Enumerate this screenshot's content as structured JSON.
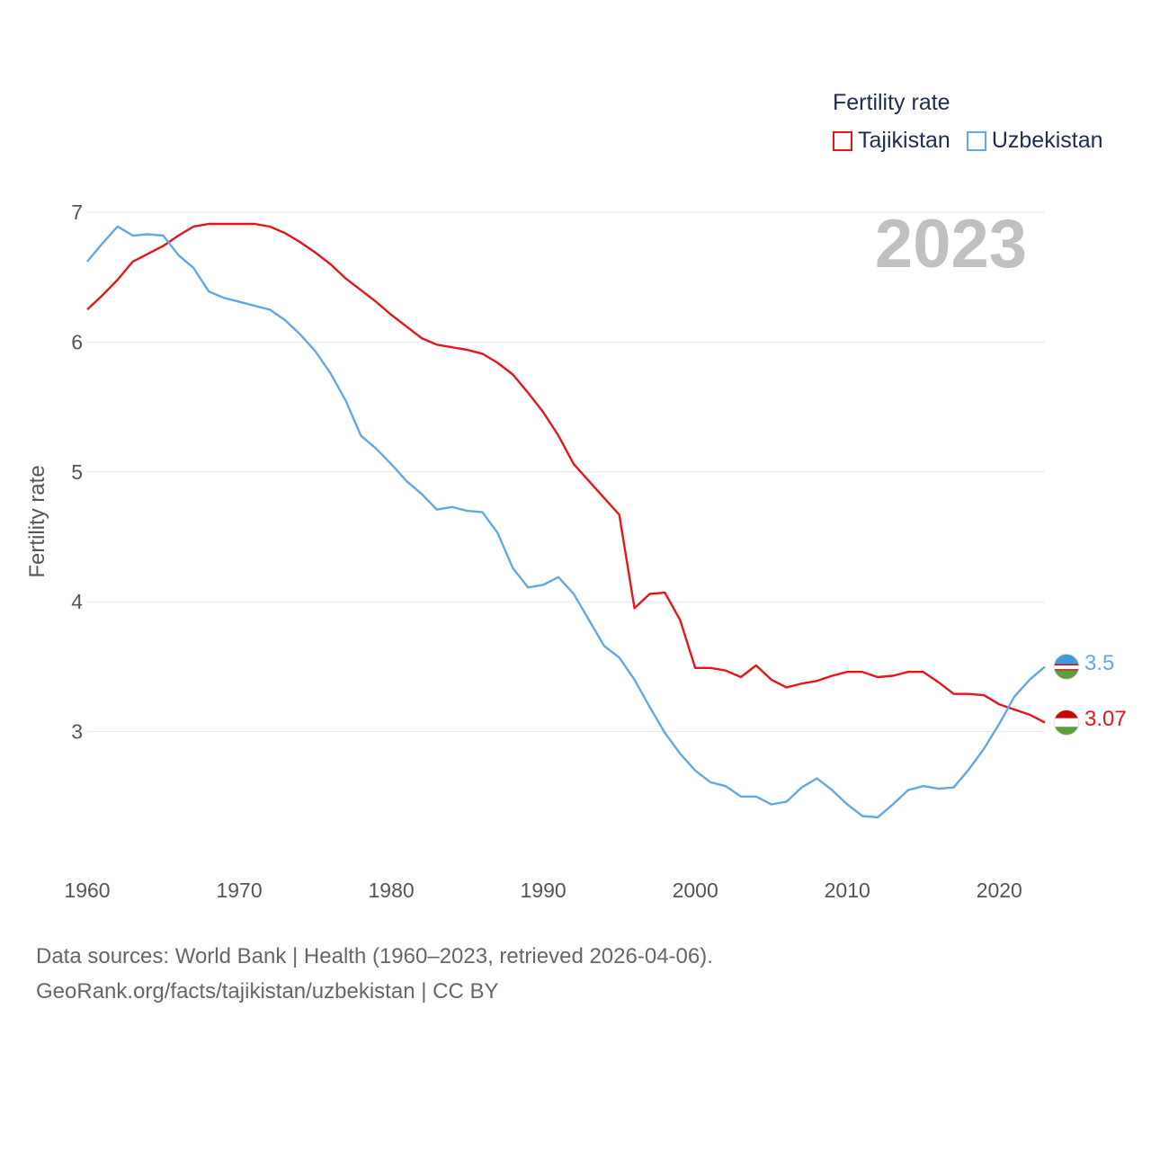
{
  "legend": {
    "title": "Fertility rate",
    "items": [
      {
        "label": "Tajikistan",
        "color": "#e8141b"
      },
      {
        "label": "Uzbekistan",
        "color": "#62a8e5"
      }
    ]
  },
  "year_label": "2023",
  "end_labels": {
    "tajikistan": "3.07",
    "uzbekistan": "3.5"
  },
  "footer": {
    "line1": "Data sources: World Bank | Health (1960–2023, retrieved 2026-04-06).",
    "line2": "GeoRank.org/facts/tajikistan/uzbekistan | CC BY"
  },
  "chart_data": {
    "type": "line",
    "title": "",
    "ylabel": "Fertility rate",
    "xlabel": "",
    "xlim": [
      1960,
      2023
    ],
    "ylim": [
      2,
      7
    ],
    "yticks": [
      3,
      4,
      5,
      6,
      7
    ],
    "xticks": [
      1960,
      1970,
      1980,
      1990,
      2000,
      2010,
      2020
    ],
    "grid": true,
    "legend_position": "top-right",
    "x": [
      1960,
      1961,
      1962,
      1963,
      1964,
      1965,
      1966,
      1967,
      1968,
      1969,
      1970,
      1971,
      1972,
      1973,
      1974,
      1975,
      1976,
      1977,
      1978,
      1979,
      1980,
      1981,
      1982,
      1983,
      1984,
      1985,
      1986,
      1987,
      1988,
      1989,
      1990,
      1991,
      1992,
      1993,
      1994,
      1995,
      1996,
      1997,
      1998,
      1999,
      2000,
      2001,
      2002,
      2003,
      2004,
      2005,
      2006,
      2007,
      2008,
      2009,
      2010,
      2011,
      2012,
      2013,
      2014,
      2015,
      2016,
      2017,
      2018,
      2019,
      2020,
      2021,
      2022,
      2023
    ],
    "series": [
      {
        "name": "Tajikistan",
        "color": "#e8141b",
        "values": [
          6.25,
          6.36,
          6.48,
          6.62,
          6.68,
          6.74,
          6.82,
          6.89,
          6.91,
          6.91,
          6.91,
          6.91,
          6.89,
          6.84,
          6.77,
          6.69,
          6.6,
          6.49,
          6.4,
          6.31,
          6.21,
          6.12,
          6.03,
          5.98,
          5.96,
          5.94,
          5.91,
          5.84,
          5.75,
          5.61,
          5.46,
          5.28,
          5.06,
          4.93,
          4.8,
          4.67,
          3.95,
          4.06,
          4.07,
          3.86,
          3.49,
          3.49,
          3.47,
          3.42,
          3.51,
          3.4,
          3.34,
          3.37,
          3.39,
          3.43,
          3.46,
          3.46,
          3.42,
          3.43,
          3.46,
          3.46,
          3.38,
          3.29,
          3.29,
          3.28,
          3.21,
          3.17,
          3.13,
          3.07
        ]
      },
      {
        "name": "Uzbekistan",
        "color": "#62a8e5",
        "values": [
          6.62,
          6.76,
          6.89,
          6.82,
          6.83,
          6.82,
          6.67,
          6.57,
          6.39,
          6.34,
          6.31,
          6.28,
          6.25,
          6.17,
          6.06,
          5.93,
          5.76,
          5.55,
          5.28,
          5.18,
          5.06,
          4.93,
          4.83,
          4.71,
          4.73,
          4.7,
          4.69,
          4.53,
          4.26,
          4.11,
          4.13,
          4.19,
          4.06,
          3.86,
          3.66,
          3.57,
          3.4,
          3.19,
          2.99,
          2.83,
          2.7,
          2.61,
          2.58,
          2.5,
          2.5,
          2.44,
          2.46,
          2.57,
          2.64,
          2.55,
          2.44,
          2.35,
          2.34,
          2.44,
          2.55,
          2.58,
          2.56,
          2.57,
          2.71,
          2.87,
          3.06,
          3.27,
          3.4,
          3.5
        ]
      }
    ]
  }
}
